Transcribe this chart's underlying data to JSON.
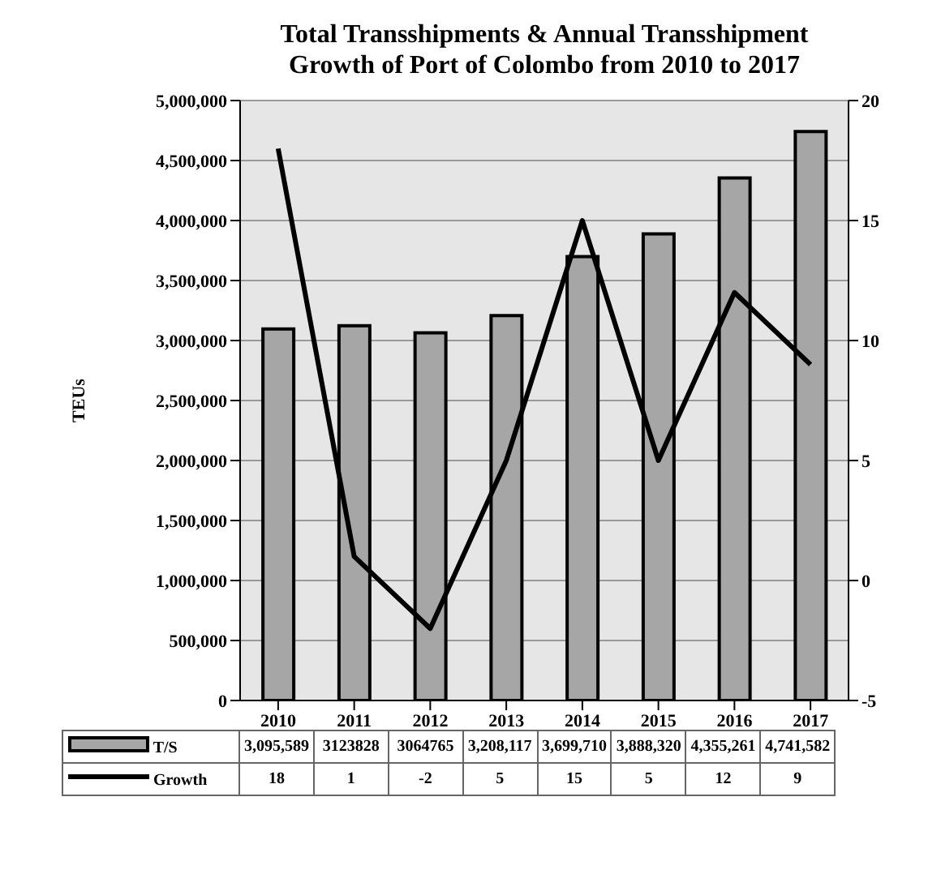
{
  "chart_data": {
    "type": "bar",
    "title": "Total Transshipments & Annual Transshipment Growth of Port of Colombo from 2010 to 2017",
    "ylabel": "TEUs",
    "categories": [
      "2010",
      "2011",
      "2012",
      "2013",
      "2014",
      "2015",
      "2016",
      "2017"
    ],
    "series": [
      {
        "name": "T/S",
        "color": "#a6a6a6",
        "values": [
          3095589,
          3123828,
          3064765,
          3208117,
          3699710,
          3888320,
          4355261,
          4741582
        ],
        "value_labels": [
          "3,095,589",
          "3123828",
          "3064765",
          "3,208,117",
          "3,699,710",
          "3,888,320",
          "4,355,261",
          "4,741,582"
        ]
      },
      {
        "name": "Growth",
        "type": "line",
        "axis": "y2",
        "color": "#000000",
        "values": [
          18,
          1,
          -2,
          5,
          15,
          5,
          12,
          9
        ],
        "value_labels": [
          "18",
          "1",
          "-2",
          "5",
          "15",
          "5",
          "12",
          "9"
        ]
      }
    ],
    "ylim": [
      0,
      5000000
    ],
    "yticks": [
      0,
      {
        "value": 500000,
        "label": "500,000"
      },
      {
        "value": 1000000,
        "label": "1,000,000"
      },
      {
        "value": 1500000,
        "label": "1,500,000"
      },
      {
        "value": 2000000,
        "label": "2,000,000"
      },
      {
        "value": 2500000,
        "label": "2,500,000"
      },
      {
        "value": 3000000,
        "label": "3,000,000"
      },
      {
        "value": 3500000,
        "label": "3,500,000"
      },
      {
        "value": 4000000,
        "label": "4,000,000"
      },
      {
        "value": 4500000,
        "label": "4,500,000"
      },
      {
        "value": 5000000,
        "label": "5,000,000"
      }
    ],
    "y2lim": [
      -5,
      20
    ],
    "y2ticks": [
      -5,
      0,
      5,
      10,
      15,
      20
    ],
    "grid": "y",
    "legend": "bottom",
    "marker": "none"
  }
}
